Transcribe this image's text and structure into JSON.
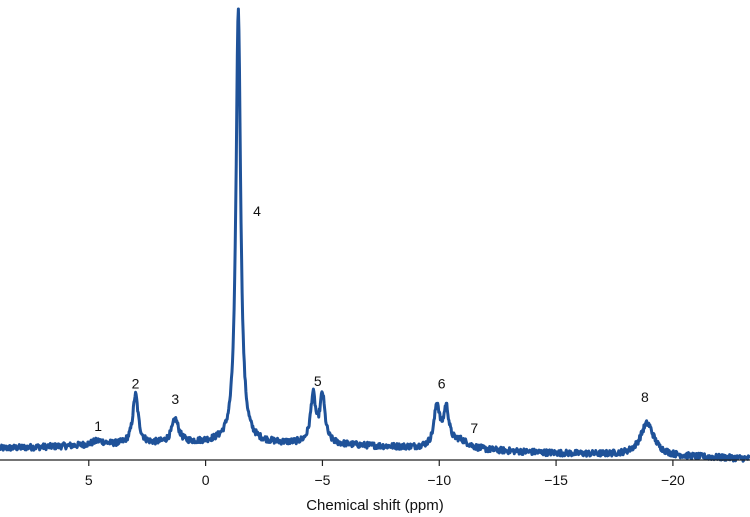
{
  "chart_data": {
    "type": "line",
    "title": "",
    "xlabel": "Chemical shift (ppm)",
    "ylabel": "",
    "xlim": [
      8.8,
      -23.3
    ],
    "x_reversed": true,
    "ylim": [
      0,
      100
    ],
    "grid": false,
    "legend": "none",
    "line_color": "#1f5299",
    "xticks": [
      {
        "value": 5,
        "label": "5"
      },
      {
        "value": 0,
        "label": "0"
      },
      {
        "value": -5,
        "label": "−5"
      },
      {
        "value": -10,
        "label": "−10"
      },
      {
        "value": -15,
        "label": "−15"
      },
      {
        "value": -20,
        "label": "−20"
      }
    ],
    "baseline": [
      [
        8.8,
        2.6
      ],
      [
        5,
        3.2
      ],
      [
        0,
        3.8
      ],
      [
        -5,
        3.5
      ],
      [
        -10,
        2.5
      ],
      [
        -15,
        1.5
      ],
      [
        -20,
        0.8
      ],
      [
        -23.3,
        0.3
      ]
    ],
    "peaks": [
      {
        "label": "1",
        "center": 4.6,
        "height": 0.9,
        "width": 0.35
      },
      {
        "label": "2",
        "center": 3.0,
        "height": 11.0,
        "width": 0.14
      },
      {
        "label": "3",
        "center": 1.3,
        "height": 5.2,
        "width": 0.18
      },
      {
        "label": "4",
        "center": -1.4,
        "height": 97.0,
        "width": 0.12
      },
      {
        "label": "5",
        "center": -4.6,
        "height": 10.5,
        "width": 0.13
      },
      {
        "label": "5b",
        "center": -5.0,
        "height": 10.5,
        "width": 0.13
      },
      {
        "label": "6",
        "center": -9.9,
        "height": 9.3,
        "width": 0.14
      },
      {
        "label": "6b",
        "center": -10.3,
        "height": 8.3,
        "width": 0.14
      },
      {
        "label": "7",
        "center": -10.9,
        "height": 1.8,
        "width": 0.45
      },
      {
        "label": "8",
        "center": -18.9,
        "height": 7.2,
        "width": 0.35
      }
    ],
    "annotations": [
      {
        "text": "1",
        "x": 4.6,
        "y": 6.5
      },
      {
        "text": "2",
        "x": 3.0,
        "y": 16.0
      },
      {
        "text": "3",
        "x": 1.3,
        "y": 12.5
      },
      {
        "text": "4",
        "x": -2.2,
        "y": 54.5
      },
      {
        "text": "5",
        "x": -4.8,
        "y": 16.5
      },
      {
        "text": "6",
        "x": -10.1,
        "y": 16.0
      },
      {
        "text": "7",
        "x": -11.5,
        "y": 6.0
      },
      {
        "text": "8",
        "x": -18.8,
        "y": 13.0
      }
    ]
  }
}
